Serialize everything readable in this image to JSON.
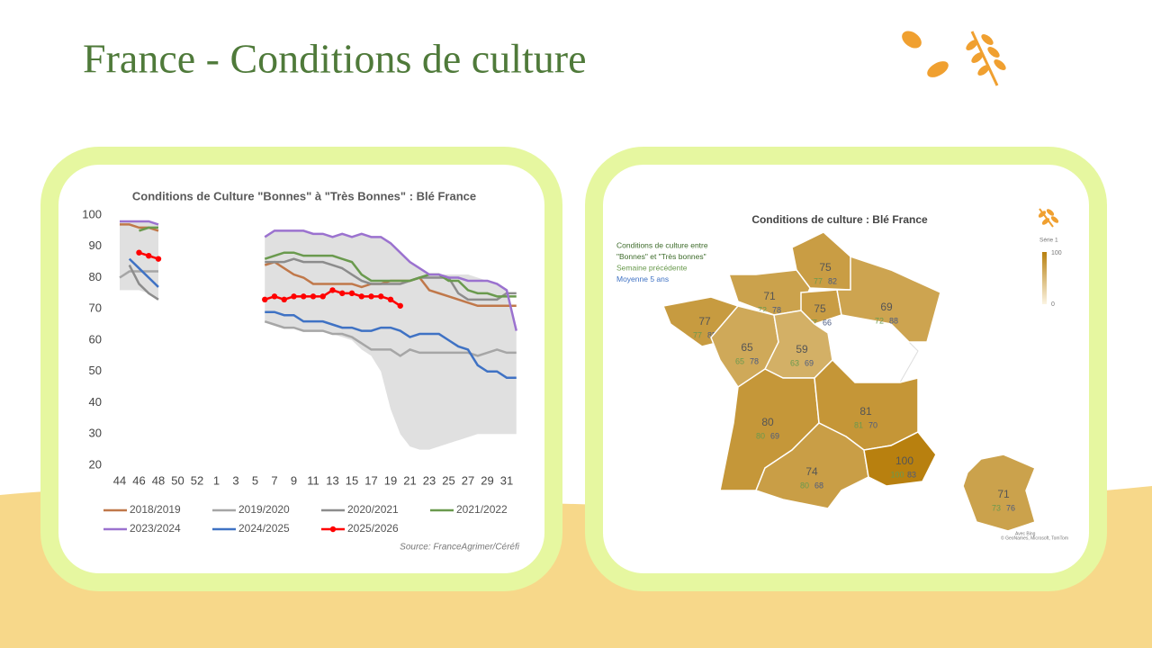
{
  "title": "France - Conditions de culture",
  "chart_data": [
    {
      "type": "line",
      "title": "Conditions de Culture \"Bonnes\" à \"Très Bonnes\" : Blé France",
      "source": "Source: FranceAgrimer/Céréfi",
      "categories": [
        "44",
        null,
        "46",
        null,
        "48",
        null,
        "50",
        null,
        "52",
        null,
        "1",
        null,
        "3",
        null,
        "5",
        null,
        "7",
        null,
        "9",
        null,
        "11",
        null,
        "13",
        null,
        "15",
        null,
        "17",
        null,
        "19",
        null,
        "21",
        null,
        "23",
        null,
        "25",
        null,
        "27",
        null,
        "29",
        null,
        "31",
        null
      ],
      "ylim": [
        20,
        100
      ],
      "yticks": [
        20,
        30,
        40,
        50,
        60,
        70,
        80,
        90,
        100
      ],
      "range": {
        "color": "#e0e0e0",
        "low": [
          76,
          76,
          76,
          75,
          73,
          null,
          null,
          null,
          null,
          null,
          null,
          null,
          null,
          null,
          null,
          66,
          65,
          64,
          64,
          63,
          63,
          63,
          62,
          61,
          60,
          57,
          55,
          50,
          38,
          30,
          26,
          25,
          25,
          26,
          27,
          28,
          29,
          30,
          30,
          30,
          30,
          30
        ],
        "high": [
          98,
          98,
          98,
          98,
          97,
          null,
          null,
          null,
          null,
          null,
          null,
          null,
          null,
          null,
          null,
          93,
          95,
          95,
          95,
          95,
          94,
          94,
          93,
          94,
          93,
          94,
          93,
          93,
          91,
          88,
          85,
          83,
          81,
          81,
          81,
          81,
          81,
          80,
          79,
          78,
          76,
          63
        ]
      },
      "series": [
        {
          "name": "2018/2019",
          "color": "#c0784a",
          "values": [
            97,
            97,
            96,
            96,
            95,
            null,
            null,
            null,
            null,
            null,
            null,
            null,
            null,
            null,
            null,
            84,
            85,
            83,
            81,
            80,
            78,
            78,
            78,
            78,
            78,
            77,
            78,
            78,
            79,
            79,
            79,
            80,
            76,
            75,
            74,
            73,
            72,
            71,
            71,
            71,
            71,
            71
          ]
        },
        {
          "name": "2019/2020",
          "color": "#a6a6a6",
          "values": [
            80,
            82,
            82,
            82,
            82,
            null,
            null,
            null,
            null,
            null,
            null,
            null,
            null,
            null,
            null,
            66,
            65,
            64,
            64,
            63,
            63,
            63,
            62,
            62,
            61,
            59,
            57,
            57,
            57,
            55,
            57,
            56,
            56,
            56,
            56,
            56,
            56,
            55,
            56,
            57,
            56,
            56
          ]
        },
        {
          "name": "2020/2021",
          "color": "#8c8c8c",
          "values": [
            null,
            84,
            78,
            75,
            73,
            null,
            null,
            null,
            null,
            null,
            null,
            null,
            null,
            null,
            null,
            85,
            85,
            85,
            86,
            85,
            85,
            85,
            84,
            83,
            81,
            79,
            78,
            78,
            78,
            78,
            79,
            80,
            80,
            80,
            80,
            75,
            73,
            73,
            73,
            73,
            75,
            75
          ]
        },
        {
          "name": "2021/2022",
          "color": "#6a9a4e",
          "values": [
            null,
            null,
            95,
            96,
            96,
            null,
            null,
            null,
            null,
            null,
            null,
            null,
            null,
            null,
            null,
            86,
            87,
            88,
            88,
            87,
            87,
            87,
            87,
            86,
            85,
            81,
            79,
            79,
            79,
            79,
            79,
            80,
            81,
            81,
            79,
            79,
            76,
            75,
            75,
            74,
            74,
            74
          ]
        },
        {
          "name": "2023/2024",
          "color": "#9b72cf",
          "values": [
            98,
            98,
            98,
            98,
            97,
            null,
            null,
            null,
            null,
            null,
            null,
            null,
            null,
            null,
            null,
            93,
            95,
            95,
            95,
            95,
            94,
            94,
            93,
            94,
            93,
            94,
            93,
            93,
            91,
            88,
            85,
            83,
            81,
            81,
            80,
            80,
            79,
            79,
            79,
            78,
            76,
            63
          ]
        },
        {
          "name": "2024/2025",
          "color": "#3f72c4",
          "values": [
            null,
            86,
            83,
            80,
            77,
            null,
            null,
            null,
            null,
            null,
            null,
            null,
            null,
            null,
            null,
            69,
            69,
            68,
            68,
            66,
            66,
            66,
            65,
            64,
            64,
            63,
            63,
            64,
            64,
            63,
            61,
            62,
            62,
            62,
            60,
            58,
            57,
            52,
            50,
            50,
            48,
            48
          ]
        },
        {
          "name": "2025/2026",
          "color": "#ff0000",
          "markers": true,
          "values": [
            null,
            null,
            88,
            87,
            86,
            null,
            null,
            null,
            null,
            null,
            null,
            null,
            null,
            null,
            null,
            73,
            74,
            73,
            74,
            74,
            74,
            74,
            76,
            75,
            75,
            74,
            74,
            74,
            73,
            71,
            null,
            null,
            null,
            null,
            null,
            null,
            null,
            null,
            null,
            null,
            null,
            null
          ]
        }
      ]
    },
    {
      "type": "map",
      "title": "Conditions de culture : Blé France",
      "legend_lines": [
        {
          "text": "Conditions de culture entre",
          "color": "#3d6b2a"
        },
        {
          "text": "\"Bonnes\" et \"Très bonnes\"",
          "color": "#3d6b2a"
        },
        {
          "text": "Semaine précédente",
          "color": "#6a9a4e"
        },
        {
          "text": "Moyenne 5 ans",
          "color": "#3f72c4"
        }
      ],
      "colorbar": {
        "label": "Série 1",
        "lim": [
          0,
          100
        ],
        "colors": [
          "#fbf4e2",
          "#b8800f"
        ]
      },
      "value_colors": [
        "#555555",
        "#6a9a4e",
        "#4a5a80"
      ],
      "regions": [
        {
          "values": [
            75,
            77,
            82
          ]
        },
        {
          "values": [
            71,
            72,
            78
          ]
        },
        {
          "values": [
            75,
            77,
            66
          ]
        },
        {
          "values": [
            69,
            72,
            88
          ]
        },
        {
          "values": [
            77,
            77,
            85
          ]
        },
        {
          "values": [
            65,
            65,
            78
          ]
        },
        {
          "values": [
            59,
            63,
            69
          ]
        },
        {
          "values": [
            80,
            80,
            69
          ]
        },
        {
          "values": [
            81,
            81,
            70
          ]
        },
        {
          "values": [
            74,
            80,
            68
          ]
        },
        {
          "values": [
            100,
            100,
            83
          ]
        },
        {
          "values": [
            71,
            73,
            76
          ]
        }
      ],
      "credit": "Avec Bing",
      "copyright": "© GeoNames, Microsoft, TomTom"
    }
  ]
}
